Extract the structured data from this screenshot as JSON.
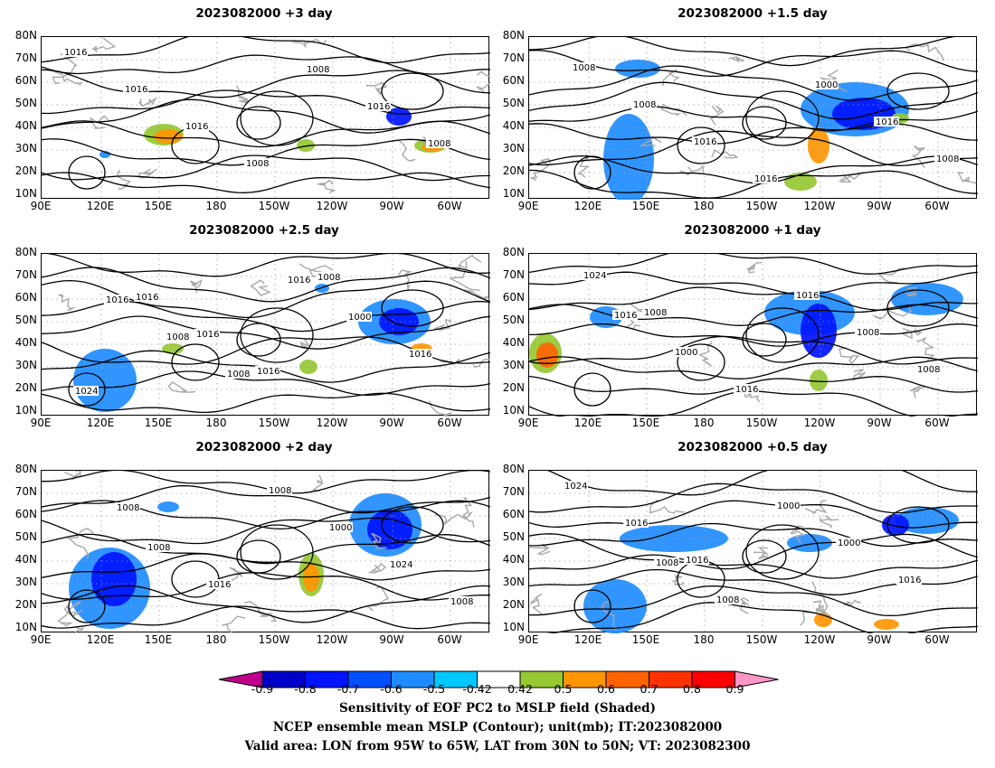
{
  "panels": [
    {
      "title": "2023082000 +3 day",
      "isobars": [
        "1016",
        "1016",
        "1016",
        "1008",
        "1008",
        "1016",
        "1008"
      ]
    },
    {
      "title": "2023082000 +1.5 day",
      "isobars": [
        "1008",
        "1008",
        "1016",
        "1016",
        "1000",
        "1016",
        "1008"
      ]
    },
    {
      "title": "2023082000 +2.5 day",
      "isobars": [
        "1016",
        "1008",
        "1008",
        "1016",
        "1000",
        "1016",
        "1024",
        "1016",
        "1016",
        "1016",
        "1008"
      ]
    },
    {
      "title": "2023082000 +1 day",
      "isobars": [
        "1016",
        "1000",
        "1016",
        "1016",
        "1008",
        "1008",
        "1024",
        "1008"
      ]
    },
    {
      "title": "2023082000 +2 day",
      "isobars": [
        "1008",
        "1016",
        "1008",
        "1000",
        "1024",
        "1008",
        "1008"
      ]
    },
    {
      "title": "2023082000 +0.5 day",
      "isobars": [
        "1008",
        "1008",
        "1000",
        "1000",
        "1016",
        "1024",
        "1016",
        "1016"
      ]
    }
  ],
  "lat_labels": [
    "80N",
    "70N",
    "60N",
    "50N",
    "40N",
    "30N",
    "20N",
    "10N"
  ],
  "lon_labels": [
    "90E",
    "120E",
    "150E",
    "180",
    "150W",
    "120W",
    "90W",
    "60W"
  ],
  "colorbar": {
    "ticks": [
      "-0.9",
      "-0.8",
      "-0.7",
      "-0.6",
      "-0.5",
      "-0.42",
      "0.42",
      "0.5",
      "0.6",
      "0.7",
      "0.8",
      "0.9"
    ],
    "colors": [
      "#c0008c",
      "#0000c8",
      "#0014ff",
      "#0050ff",
      "#1e8cff",
      "#00c8ff",
      "#ffffff",
      "#96c832",
      "#ff9600",
      "#ff6400",
      "#ff3200",
      "#ff0000",
      "#ff96c8"
    ]
  },
  "caption": {
    "line1": "Sensitivity of EOF PC2 to MSLP field (Shaded)",
    "line2": "NCEP ensemble mean MSLP (Contour); unit(mb); IT:2023082000",
    "line3": "Valid area: LON from 95W to 65W, LAT from 30N to 50N; VT: 2023082300"
  }
}
